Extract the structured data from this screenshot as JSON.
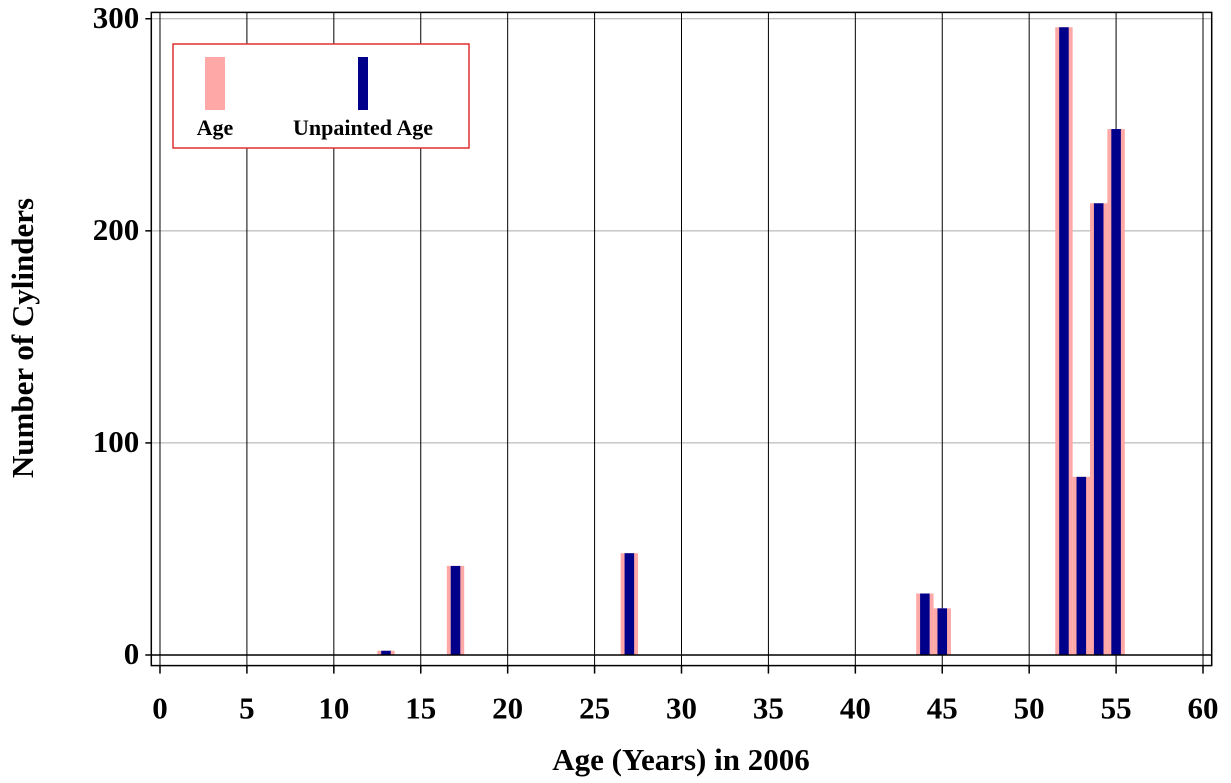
{
  "chart_data": {
    "type": "bar",
    "xlabel": "Age (Years) in 2006",
    "ylabel": "Number of Cylinders",
    "x": [
      13,
      17,
      27,
      44,
      45,
      52,
      53,
      54,
      55
    ],
    "series": [
      {
        "name": "Age",
        "color": "#ffa8a8",
        "values": [
          2,
          42,
          48,
          29,
          22,
          296,
          84,
          213,
          248
        ]
      },
      {
        "name": "Unpainted Age",
        "color": "#00008b",
        "values": [
          2,
          42,
          48,
          29,
          22,
          296,
          84,
          213,
          248
        ]
      }
    ],
    "xlim": [
      -0.5,
      60.5
    ],
    "xticks": [
      0,
      5,
      10,
      15,
      20,
      25,
      30,
      35,
      40,
      45,
      50,
      55,
      60
    ],
    "ylim": [
      -5,
      303
    ],
    "yticks": [
      0,
      100,
      200,
      300
    ],
    "grid": true,
    "legend": "upper left"
  }
}
